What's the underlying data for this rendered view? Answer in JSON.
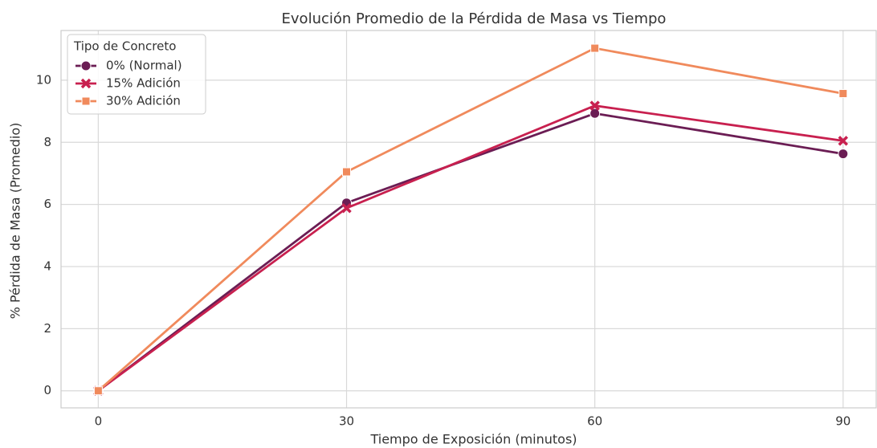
{
  "chart_data": {
    "type": "line",
    "title": "Evolución Promedio de la Pérdida de Masa vs Tiempo",
    "x_label": "Tiempo de Exposición (minutos)",
    "y_label": "% Pérdida de Masa (Promedio)",
    "x": [
      0,
      30,
      60,
      90
    ],
    "series": [
      {
        "name": "0% (Normal)",
        "color": "#6b1d54",
        "marker": "circle",
        "values": [
          0,
          6.05,
          8.93,
          7.63
        ]
      },
      {
        "name": "15% Adición",
        "color": "#c8204f",
        "marker": "x",
        "values": [
          0,
          5.88,
          9.18,
          8.05
        ]
      },
      {
        "name": "30% Adición",
        "color": "#f08a5c",
        "marker": "square",
        "values": [
          0,
          7.05,
          11.03,
          9.57
        ]
      }
    ],
    "xlim": [
      -4.5,
      94
    ],
    "xticks": [
      0,
      30,
      60,
      90
    ],
    "ylim": [
      -0.55,
      11.6
    ],
    "yticks": [
      0,
      2,
      4,
      6,
      8,
      10
    ],
    "grid": true,
    "legend_title": "Tipo de Concreto",
    "legend": "upper left"
  }
}
